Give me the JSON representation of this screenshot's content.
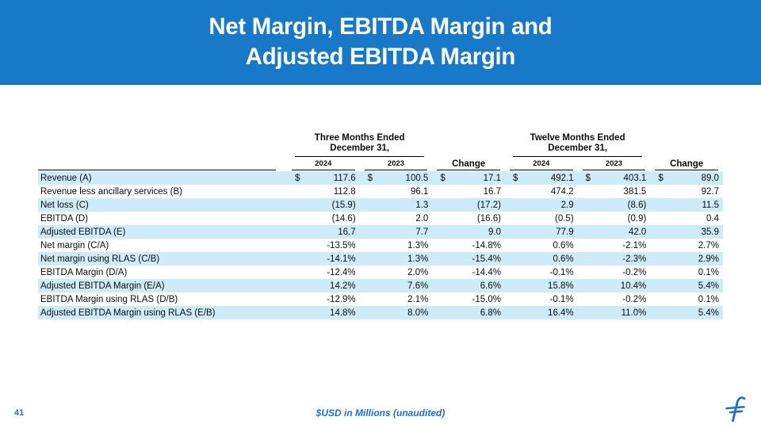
{
  "slide": {
    "title_line1": "Net Margin, EBITDA Margin and",
    "title_line2": "Adjusted EBITDA Margin",
    "page_number": "41",
    "footnote": "$USD in Millions (unaudited)"
  },
  "colors": {
    "header_blue": "#1879C8",
    "stripe_blue": "#CEEBF9",
    "footer_blue": "#1E6FC5",
    "logo_blue": "#1B72C4"
  },
  "table": {
    "currency_symbol": "$",
    "groups": [
      {
        "line1": "Three Months Ended",
        "line2": "December 31,"
      },
      {
        "line1": "Twelve Months Ended",
        "line2": "December 31,"
      }
    ],
    "columns": [
      "2024",
      "2023",
      "Change",
      "2024",
      "2023",
      "Change"
    ],
    "rows": [
      {
        "label": "Revenue (A)",
        "dollar": true,
        "striped": true,
        "values": [
          "117.6",
          "100.5",
          "17.1",
          "492.1",
          "403.1",
          "89.0"
        ]
      },
      {
        "label": "Revenue less ancillary services (B)",
        "dollar": false,
        "striped": false,
        "values": [
          "112.8",
          "96.1",
          "16.7",
          "474.2",
          "381.5",
          "92.7"
        ]
      },
      {
        "label": "Net loss (C)",
        "dollar": false,
        "striped": true,
        "values": [
          "(15.9)",
          "1.3",
          "(17.2)",
          "2.9",
          "(8.6)",
          "11.5"
        ]
      },
      {
        "label": "EBITDA (D)",
        "dollar": false,
        "striped": false,
        "values": [
          "(14.6)",
          "2.0",
          "(16.6)",
          "(0.5)",
          "(0.9)",
          "0.4"
        ]
      },
      {
        "label": "Adjusted EBITDA (E)",
        "dollar": false,
        "striped": true,
        "values": [
          "16.7",
          "7.7",
          "9.0",
          "77.9",
          "42.0",
          "35.9"
        ]
      },
      {
        "label": "Net margin (C/A)",
        "dollar": false,
        "striped": false,
        "values": [
          "-13.5%",
          "1.3%",
          "-14.8%",
          "0.6%",
          "-2.1%",
          "2.7%"
        ]
      },
      {
        "label": "Net margin using RLAS (C/B)",
        "dollar": false,
        "striped": true,
        "values": [
          "-14.1%",
          "1.3%",
          "-15.4%",
          "0.6%",
          "-2.3%",
          "2.9%"
        ]
      },
      {
        "label": "EBITDA Margin (D/A)",
        "dollar": false,
        "striped": false,
        "values": [
          "-12.4%",
          "2.0%",
          "-14.4%",
          "-0.1%",
          "-0.2%",
          "0.1%"
        ]
      },
      {
        "label": "Adjusted EBITDA Margin (E/A)",
        "dollar": false,
        "striped": true,
        "values": [
          "14.2%",
          "7.6%",
          "6.6%",
          "15.8%",
          "10.4%",
          "5.4%"
        ]
      },
      {
        "label": "EBITDA Margin using RLAS (D/B)",
        "dollar": false,
        "striped": false,
        "values": [
          "-12.9%",
          "2.1%",
          "-15.0%",
          "-0.1%",
          "-0.2%",
          "0.1%"
        ]
      },
      {
        "label": "Adjusted EBITDA Margin using RLAS (E/B)",
        "dollar": false,
        "striped": true,
        "values": [
          "14.8%",
          "8.0%",
          "6.8%",
          "16.4%",
          "11.0%",
          "5.4%"
        ]
      }
    ]
  }
}
